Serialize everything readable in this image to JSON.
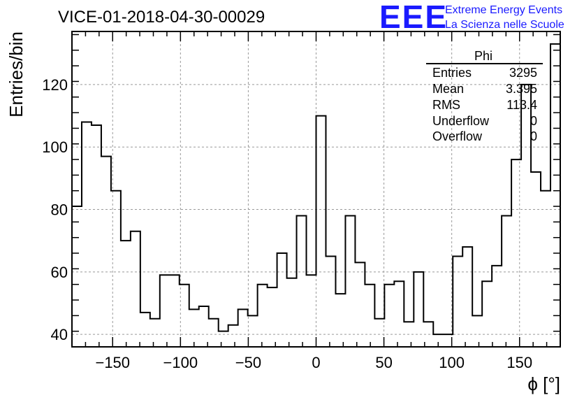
{
  "header": {
    "title": "VICE-01-2018-04-30-00029",
    "brand_logo": "EEE",
    "brand_line1": "Extreme Energy Events",
    "brand_line2": "La Scienza nelle Scuole",
    "brand_color": "#1a1aff"
  },
  "stats": {
    "name": "Phi",
    "rows": [
      {
        "label": "Entries",
        "value": "3295"
      },
      {
        "label": "Mean",
        "value": "3.395"
      },
      {
        "label": "RMS",
        "value": "113.4"
      },
      {
        "label": "Underflow",
        "value": "0"
      },
      {
        "label": "Overflow",
        "value": "0"
      }
    ]
  },
  "chart_data": {
    "type": "histogram",
    "title": "VICE-01-2018-04-30-00029",
    "xlabel": "ϕ [°]",
    "ylabel": "Entries/bin",
    "xlim": [
      -180,
      180
    ],
    "ylim": [
      36,
      137
    ],
    "grid": true,
    "bin_width": 7.2,
    "bin_edges_start": -180,
    "values": [
      81,
      108,
      107,
      97,
      86,
      70,
      73,
      47,
      45,
      59,
      59,
      56,
      48,
      49,
      45,
      41,
      43,
      48,
      46,
      56,
      55,
      66,
      58,
      78,
      59,
      110,
      65,
      53,
      78,
      63,
      56,
      45,
      56,
      57,
      44,
      60,
      44,
      40,
      40,
      65,
      68,
      46,
      57,
      62,
      78,
      96,
      120,
      92,
      86,
      133
    ],
    "x_ticks": [
      -150,
      -100,
      -50,
      0,
      50,
      100,
      150
    ],
    "x_tick_labels": [
      "−150",
      "−100",
      "−50",
      "0",
      "50",
      "100",
      "150"
    ],
    "y_ticks": [
      40,
      60,
      80,
      100,
      120
    ],
    "y_tick_labels": [
      "40",
      "60",
      "80",
      "100",
      "120"
    ]
  }
}
